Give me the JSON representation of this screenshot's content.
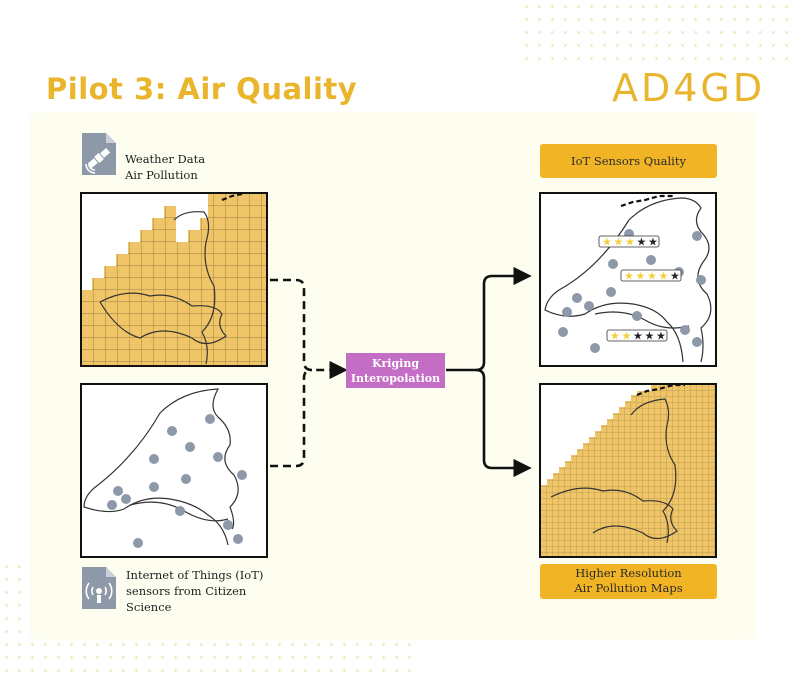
{
  "header": {
    "title": "Pilot 3: Air Quality",
    "logo": "AD4GD"
  },
  "inputs": {
    "top_caption_line1": "Weather Data",
    "top_caption_line2": "Air Pollution",
    "bottom_caption_line1": "Internet of Things (IoT)",
    "bottom_caption_line2": "sensors from Citizen",
    "bottom_caption_line3": "Science"
  },
  "process": {
    "line1": "Kriging",
    "line2": "Interopolation"
  },
  "outputs": {
    "quality_label": "IoT Sensors Quality",
    "result_line1": "Higher Resolution",
    "result_line2": "Air Pollution Maps"
  },
  "sensor_ratings": [
    {
      "stars": 3,
      "max": 5
    },
    {
      "stars": 4,
      "max": 5
    },
    {
      "stars": 1.5,
      "max": 5
    }
  ],
  "colors": {
    "accent": "#e8b52c",
    "grid_fill": "#f0c567",
    "process_box": "#c46dc4",
    "sensor_dot": "#8d98a8",
    "label_box": "#f1b425"
  }
}
